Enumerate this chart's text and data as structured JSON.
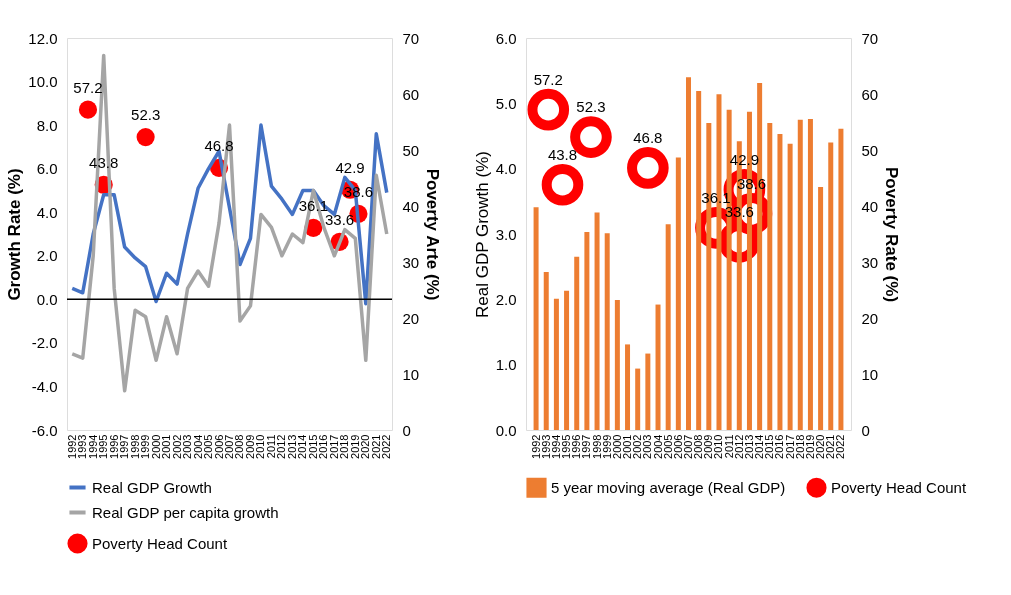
{
  "chart_data": [
    {
      "type": "line",
      "ylabel": "Growth Rate (%)",
      "y2label": "Poverty Arte (%)",
      "xlim": [
        1991.5,
        2022.5
      ],
      "xticks": [
        1992,
        1993,
        1994,
        1995,
        1996,
        1997,
        1998,
        1999,
        2000,
        2001,
        2002,
        2003,
        2004,
        2005,
        2006,
        2007,
        2008,
        2009,
        2010,
        2011,
        2012,
        2013,
        2014,
        2015,
        2016,
        2017,
        2018,
        2019,
        2020,
        2021,
        2022
      ],
      "ylim": [
        -6,
        12
      ],
      "yticks": [
        {
          "value": -6,
          "label": "-6.0"
        },
        {
          "value": -4,
          "label": "-4.0"
        },
        {
          "value": -2,
          "label": "-2.0"
        },
        {
          "value": 0,
          "label": "0.0"
        },
        {
          "value": 2,
          "label": "2.0"
        },
        {
          "value": 4,
          "label": "4.0"
        },
        {
          "value": 6,
          "label": "6.0"
        },
        {
          "value": 8,
          "label": "8.0"
        },
        {
          "value": 10,
          "label": "10.0"
        },
        {
          "value": 12,
          "label": "12.0"
        }
      ],
      "y2lim": [
        0,
        70
      ],
      "y2ticks": [
        0,
        10,
        20,
        30,
        40,
        50,
        60,
        70
      ],
      "x": [
        1992,
        1993,
        1994,
        1995,
        1996,
        1997,
        1998,
        1999,
        2000,
        2001,
        2002,
        2003,
        2004,
        2005,
        2006,
        2007,
        2008,
        2009,
        2010,
        2011,
        2012,
        2013,
        2014,
        2015,
        2016,
        2017,
        2018,
        2019,
        2020,
        2021,
        2022
      ],
      "series": [
        {
          "name": "Real GDP Growth",
          "color": "#4472c4",
          "values": [
            0.5,
            0.3,
            3.0,
            4.8,
            4.8,
            2.4,
            1.9,
            1.5,
            -0.1,
            1.2,
            0.7,
            3.0,
            5.1,
            6.0,
            6.8,
            4.2,
            1.6,
            2.8,
            8.0,
            5.2,
            4.6,
            3.9,
            5.0,
            5.0,
            4.3,
            3.9,
            5.6,
            5.0,
            -0.2,
            7.6,
            4.9
          ]
        },
        {
          "name": "Real GDP per capita growth",
          "color": "#a5a5a5",
          "values": [
            -2.5,
            -2.7,
            2.0,
            11.2,
            0.5,
            -4.2,
            -0.5,
            -0.8,
            -2.8,
            -0.8,
            -2.5,
            0.5,
            1.3,
            0.6,
            3.5,
            8.0,
            -1.0,
            -0.3,
            3.9,
            3.3,
            2.0,
            3.0,
            2.6,
            5.0,
            3.3,
            2.0,
            3.2,
            2.8,
            -2.8,
            5.7,
            3.0
          ]
        },
        {
          "name": "Poverty Head Count",
          "type": "scatter",
          "axis": "y2",
          "color": "#ff0000",
          "marker": "circle",
          "x": [
            1993.5,
            1995,
            1999,
            2006,
            2015,
            2017.5,
            2018.5,
            2019.3
          ],
          "values": [
            57.2,
            43.8,
            52.3,
            46.8,
            36.1,
            33.6,
            42.9,
            38.6
          ],
          "value_labels": [
            "57.2",
            "43.8",
            "52.3",
            "46.8",
            "36.1",
            "33.6",
            "42.9",
            "38.6"
          ]
        }
      ],
      "ref_lines": [
        {
          "axis": "y",
          "value": 0,
          "color": "#000000"
        }
      ],
      "legend": "bottom",
      "grid": false,
      "marker": "none",
      "line_style": "solid"
    },
    {
      "type": "bar",
      "ylabel": "Real GDP Growth (%)",
      "y2label": "Poverty Rate (%)",
      "xlim": [
        1991.5,
        2022.5
      ],
      "xticks": [
        1992,
        1993,
        1994,
        1995,
        1996,
        1997,
        1998,
        1999,
        2000,
        2001,
        2002,
        2003,
        2004,
        2005,
        2006,
        2007,
        2008,
        2009,
        2010,
        2011,
        2012,
        2013,
        2014,
        2015,
        2016,
        2017,
        2018,
        2019,
        2020,
        2021,
        2022
      ],
      "ylim": [
        0,
        6
      ],
      "yticks": [
        {
          "value": 0,
          "label": "0.0"
        },
        {
          "value": 1,
          "label": "1.0"
        },
        {
          "value": 2,
          "label": "2.0"
        },
        {
          "value": 3,
          "label": "3.0"
        },
        {
          "value": 4,
          "label": "4.0"
        },
        {
          "value": 5,
          "label": "5.0"
        },
        {
          "value": 6,
          "label": "6.0"
        }
      ],
      "y2lim": [
        0,
        70
      ],
      "y2ticks": [
        0,
        10,
        20,
        30,
        40,
        50,
        60,
        70
      ],
      "x": [
        1992,
        1993,
        1994,
        1995,
        1996,
        1997,
        1998,
        1999,
        2000,
        2001,
        2002,
        2003,
        2004,
        2005,
        2006,
        2007,
        2008,
        2009,
        2010,
        2011,
        2012,
        2013,
        2014,
        2015,
        2016,
        2017,
        2018,
        2019,
        2020,
        2021,
        2022
      ],
      "series": [
        {
          "name": "5 year moving average (Real GDP)",
          "color": "#ed7d31",
          "values": [
            3.41,
            2.42,
            2.01,
            2.13,
            2.65,
            3.03,
            3.33,
            3.01,
            1.99,
            1.31,
            0.94,
            1.17,
            1.92,
            3.15,
            4.17,
            5.4,
            5.19,
            4.7,
            5.14,
            4.9,
            4.42,
            4.87,
            5.31,
            4.7,
            4.53,
            4.38,
            4.75,
            4.76,
            3.72,
            4.4,
            4.61
          ]
        },
        {
          "name": "Poverty Head Count",
          "type": "scatter",
          "axis": "y2",
          "color": "#ff0000",
          "marker": "circle",
          "x": [
            1993.2,
            1997.4,
            1994.6,
            2003,
            2009.7,
            2012,
            2012.5,
            2013.2
          ],
          "values": [
            57.2,
            52.3,
            43.8,
            46.8,
            36.1,
            33.6,
            42.9,
            38.6
          ],
          "value_labels": [
            "57.2",
            "52.3",
            "43.8",
            "46.8",
            "36.1",
            "33.6",
            "42.9",
            "38.6"
          ]
        }
      ],
      "legend": "bottom",
      "grid": false
    }
  ]
}
